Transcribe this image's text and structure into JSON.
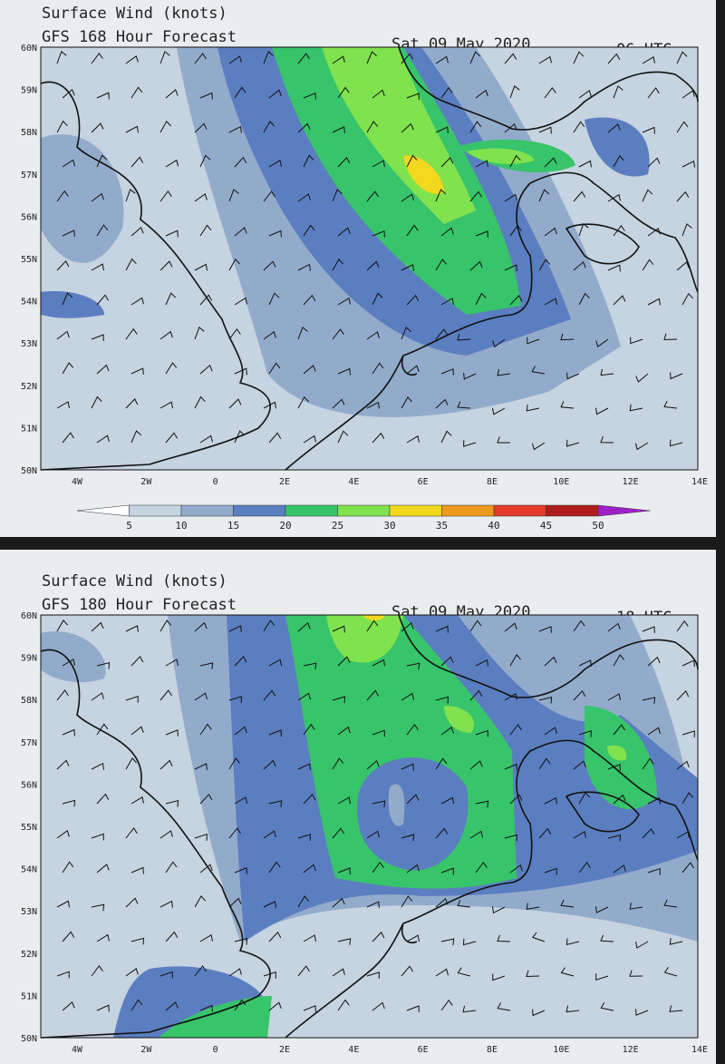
{
  "panels": [
    {
      "title": "Surface Wind (knots)",
      "subtitle": "GFS 168 Hour Forecast",
      "date": "Sat 09 May 2020",
      "time": "06 UTC",
      "lat_labels": [
        "60N",
        "59N",
        "58N",
        "57N",
        "56N",
        "55N",
        "54N",
        "53N",
        "52N",
        "51N",
        "50N"
      ],
      "lon_labels": [
        "4W",
        "2W",
        "0",
        "2E",
        "4E",
        "6E",
        "8E",
        "10E",
        "12E",
        "14E"
      ],
      "colorbar": {
        "labels": [
          "5",
          "10",
          "15",
          "20",
          "25",
          "30",
          "35",
          "40",
          "45",
          "50"
        ]
      }
    },
    {
      "title": "Surface Wind (knots)",
      "subtitle": "GFS 180 Hour Forecast",
      "date": "Sat 09 May 2020",
      "time": "18 UTC",
      "lat_labels": [
        "60N",
        "59N",
        "58N",
        "57N",
        "56N",
        "55N",
        "54N",
        "53N",
        "52N",
        "51N",
        "50N"
      ],
      "lon_labels": [
        "4W",
        "2W",
        "0",
        "2E",
        "4E",
        "6E",
        "8E",
        "10E",
        "12E",
        "14E"
      ],
      "colorbar": {
        "labels": []
      }
    }
  ]
}
